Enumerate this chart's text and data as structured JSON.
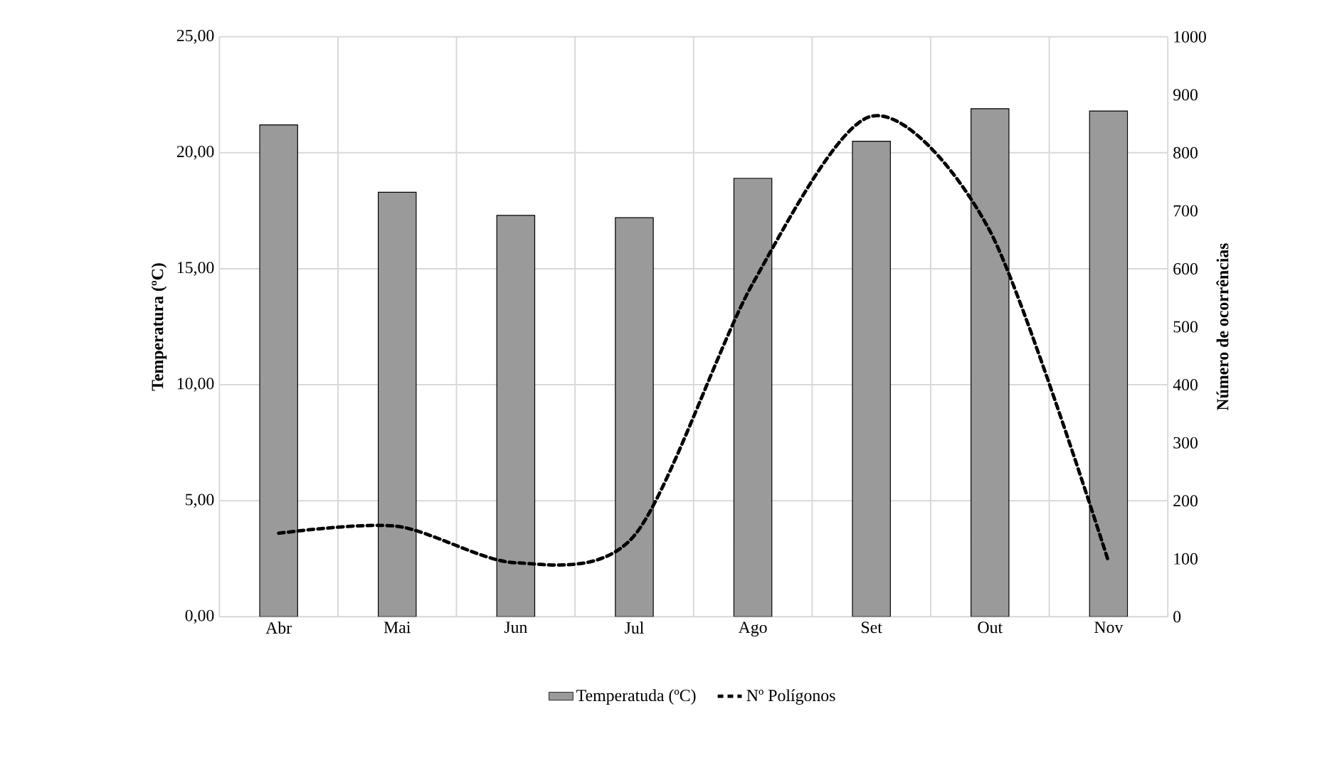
{
  "chart_data": {
    "type": "bar",
    "ylabel": "Temperatura (ºC)",
    "y2label": "Número de ocorrências",
    "categories": [
      "Abr",
      "Mai",
      "Jun",
      "Jul",
      "Ago",
      "Set",
      "Out",
      "Nov"
    ],
    "series": [
      {
        "name": "Temperatuda (ºC)",
        "color": "#9a9a9a",
        "values": [
          21.2,
          18.3,
          17.3,
          17.2,
          18.9,
          20.5,
          21.9,
          21.8
        ]
      },
      {
        "name": "Nº Polígonos",
        "type": "line",
        "axis": "y2",
        "color": "#000000",
        "line_style": "dotted",
        "values": [
          144,
          156,
          93,
          140,
          575,
          863,
          665,
          95
        ]
      }
    ],
    "ylim": [
      0,
      25
    ],
    "yticks": [
      {
        "value": 0,
        "label": "0,00"
      },
      {
        "value": 5,
        "label": "5,00"
      },
      {
        "value": 10,
        "label": "10,00"
      },
      {
        "value": 15,
        "label": "15,00"
      },
      {
        "value": 20,
        "label": "20,00"
      },
      {
        "value": 25,
        "label": "25,00"
      }
    ],
    "y2lim": [
      0,
      1000
    ],
    "y2ticks": [
      0,
      100,
      200,
      300,
      400,
      500,
      600,
      700,
      800,
      900,
      1000
    ],
    "grid": true,
    "legend": "bottom",
    "marker": "none"
  }
}
